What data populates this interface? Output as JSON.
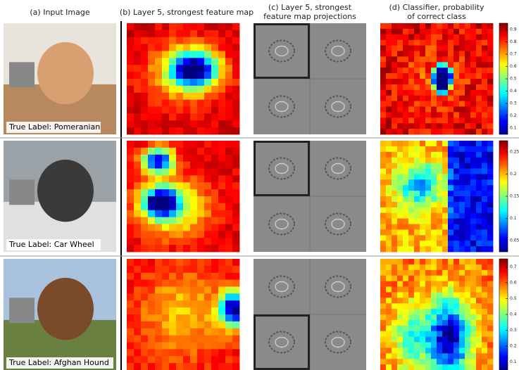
{
  "header": {
    "columns": [
      {
        "lines": [
          "(a) Input Image"
        ]
      },
      {
        "lines": [
          "(b) Layer 5, strongest feature map"
        ]
      },
      {
        "lines": [
          "(c) Layer 5, strongest",
          "feature map projections"
        ]
      },
      {
        "lines": [
          "(d) Classifier, probability",
          "of correct class"
        ]
      }
    ]
  },
  "rows": [
    {
      "true_label": "True Label: Pomeranian",
      "colorbar_ticks": [
        "0.9",
        "0.8",
        "0.7",
        "0.6",
        "0.5",
        "0.4",
        "0.3",
        "0.2",
        "0.1"
      ]
    },
    {
      "true_label": "True Label: Car Wheel",
      "colorbar_ticks": [
        "0.25",
        "0.2",
        "0.15",
        "0.1",
        "0.05"
      ]
    },
    {
      "true_label": "True Label: Afghan Hound",
      "colorbar_ticks": [
        "0.7",
        "0.6",
        "0.5",
        "0.4",
        "0.3",
        "0.2",
        "0.1"
      ]
    }
  ]
}
